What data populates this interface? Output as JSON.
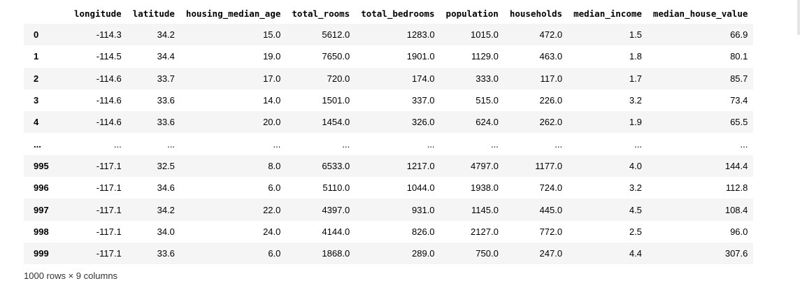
{
  "columns": [
    "",
    "longitude",
    "latitude",
    "housing_median_age",
    "total_rooms",
    "total_bedrooms",
    "population",
    "households",
    "median_income",
    "median_house_value"
  ],
  "rows": [
    [
      "0",
      "-114.3",
      "34.2",
      "15.0",
      "5612.0",
      "1283.0",
      "1015.0",
      "472.0",
      "1.5",
      "66.9"
    ],
    [
      "1",
      "-114.5",
      "34.4",
      "19.0",
      "7650.0",
      "1901.0",
      "1129.0",
      "463.0",
      "1.8",
      "80.1"
    ],
    [
      "2",
      "-114.6",
      "33.7",
      "17.0",
      "720.0",
      "174.0",
      "333.0",
      "117.0",
      "1.7",
      "85.7"
    ],
    [
      "3",
      "-114.6",
      "33.6",
      "14.0",
      "1501.0",
      "337.0",
      "515.0",
      "226.0",
      "3.2",
      "73.4"
    ],
    [
      "4",
      "-114.6",
      "33.6",
      "20.0",
      "1454.0",
      "326.0",
      "624.0",
      "262.0",
      "1.9",
      "65.5"
    ],
    [
      "...",
      "...",
      "...",
      "...",
      "...",
      "...",
      "...",
      "...",
      "...",
      "..."
    ],
    [
      "995",
      "-117.1",
      "32.5",
      "8.0",
      "6533.0",
      "1217.0",
      "4797.0",
      "1177.0",
      "4.0",
      "144.4"
    ],
    [
      "996",
      "-117.1",
      "34.6",
      "6.0",
      "5110.0",
      "1044.0",
      "1938.0",
      "724.0",
      "3.2",
      "112.8"
    ],
    [
      "997",
      "-117.1",
      "34.2",
      "22.0",
      "4397.0",
      "931.0",
      "1145.0",
      "445.0",
      "4.5",
      "108.4"
    ],
    [
      "998",
      "-117.1",
      "34.0",
      "24.0",
      "4144.0",
      "826.0",
      "2127.0",
      "772.0",
      "2.5",
      "96.0"
    ],
    [
      "999",
      "-117.1",
      "33.6",
      "6.0",
      "1868.0",
      "289.0",
      "750.0",
      "247.0",
      "4.4",
      "307.6"
    ]
  ],
  "summary": "1000 rows × 9 columns"
}
